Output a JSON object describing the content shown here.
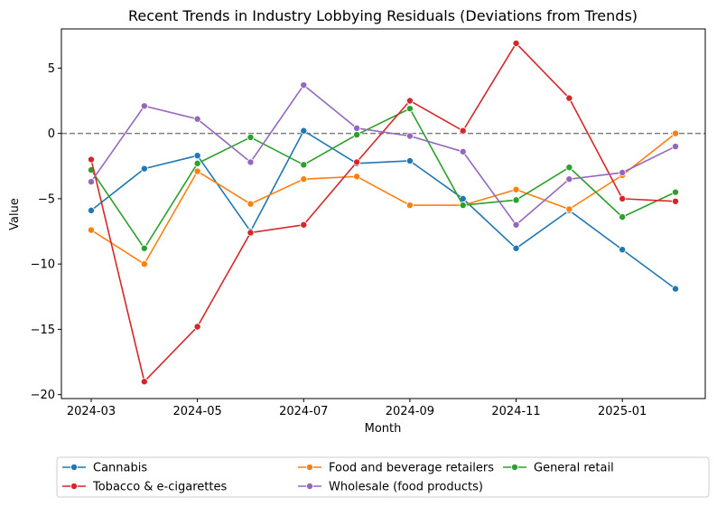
{
  "chart_data": {
    "type": "line",
    "title": "Recent Trends in Industry Lobbying Residuals (Deviations from Trends)",
    "xlabel": "Month",
    "ylabel": "Value",
    "x": [
      "2024-03",
      "2024-04",
      "2024-05",
      "2024-06",
      "2024-07",
      "2024-08",
      "2024-09",
      "2024-10",
      "2024-11",
      "2024-12",
      "2025-01",
      "2025-02"
    ],
    "x_ticks": [
      "2024-03",
      "2024-05",
      "2024-07",
      "2024-09",
      "2024-11",
      "2025-01"
    ],
    "y_ticks": [
      -20,
      -15,
      -10,
      -5,
      0,
      5
    ],
    "ylim": [
      -20.3,
      8.0
    ],
    "reference_line": {
      "y": 0,
      "style": "dashed",
      "color": "#808080"
    },
    "grid": false,
    "legend_placement": "below",
    "series": [
      {
        "name": "Cannabis",
        "color": "#1f77b4",
        "values": [
          -5.9,
          -2.7,
          -1.7,
          -7.5,
          0.2,
          -2.3,
          -2.1,
          -5.0,
          -8.8,
          -5.9,
          -8.9,
          -11.9
        ]
      },
      {
        "name": "Food and beverage retailers",
        "color": "#ff7f0e",
        "values": [
          -7.4,
          -10.0,
          -2.9,
          -5.4,
          -3.5,
          -3.3,
          -5.5,
          -5.5,
          -4.3,
          -5.8,
          -3.2,
          0.0
        ]
      },
      {
        "name": "General retail",
        "color": "#2ca02c",
        "values": [
          -2.8,
          -8.8,
          -2.3,
          -0.3,
          -2.4,
          -0.1,
          1.9,
          -5.5,
          -5.1,
          -2.6,
          -6.4,
          -4.5
        ]
      },
      {
        "name": "Tobacco & e-cigarettes",
        "color": "#d62728",
        "values": [
          -2.0,
          -19.0,
          -14.8,
          -7.6,
          -7.0,
          -2.2,
          2.5,
          0.2,
          6.9,
          2.7,
          -5.0,
          -5.2
        ]
      },
      {
        "name": "Wholesale (food products)",
        "color": "#9467bd",
        "values": [
          -3.7,
          2.1,
          1.1,
          -2.2,
          3.7,
          0.4,
          -0.2,
          -1.4,
          -7.0,
          -3.5,
          -3.0,
          -1.0
        ]
      }
    ]
  }
}
